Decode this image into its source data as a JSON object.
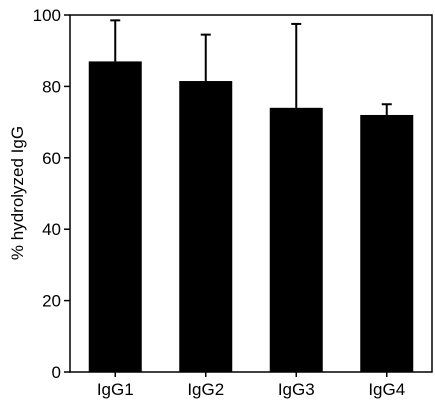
{
  "chart_data": {
    "type": "bar",
    "title": "",
    "xlabel": "",
    "ylabel": "% hydrolyzed IgG",
    "categories": [
      "IgG1",
      "IgG2",
      "IgG3",
      "IgG4"
    ],
    "values": [
      87,
      81.5,
      74,
      72
    ],
    "error_upper": [
      98.5,
      94.5,
      97.5,
      75
    ],
    "ylim": [
      0,
      100
    ],
    "yticks": [
      0,
      20,
      40,
      60,
      80,
      100
    ],
    "grid": false,
    "legend": "none",
    "colors": {
      "bar": "#000000",
      "axis": "#000000",
      "background": "#ffffff"
    }
  }
}
